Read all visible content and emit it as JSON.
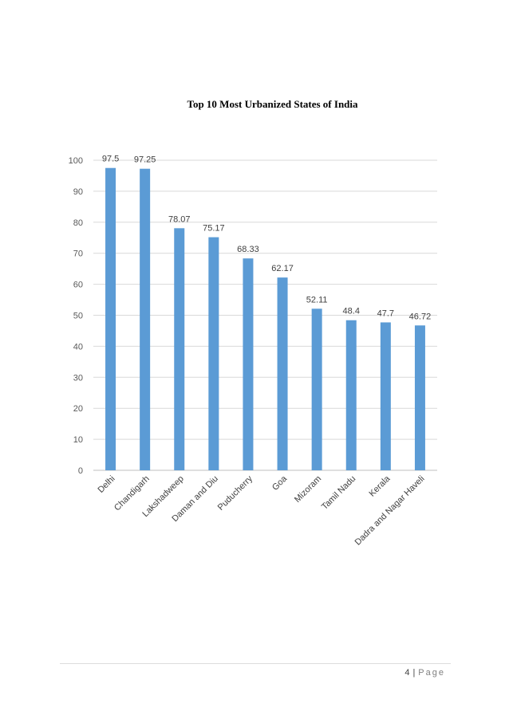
{
  "chart_data": {
    "type": "bar",
    "title": "Top 10 Most Urbanized States of India",
    "categories": [
      "Delhi",
      "Chandigarh",
      "Lakshadweep",
      "Daman and Diu",
      "Puducherry",
      "Goa",
      "Mizoram",
      "Tamil Nadu",
      "Kerala",
      "Dadra and Nagar Haveli"
    ],
    "values": [
      97.5,
      97.25,
      78.07,
      75.17,
      68.33,
      62.17,
      52.11,
      48.4,
      47.7,
      46.72
    ],
    "data_labels": [
      "97.5",
      "97.25",
      "78.07",
      "75.17",
      "68.33",
      "62.17",
      "52.11",
      "48.4",
      "47.7",
      "46.72"
    ],
    "yticks": [
      "0",
      "10",
      "20",
      "30",
      "40",
      "50",
      "60",
      "70",
      "80",
      "90",
      "100"
    ],
    "ylim": [
      0,
      100
    ],
    "grid": true,
    "bar_color": "#5b9bd5",
    "legend": "none"
  },
  "footer": {
    "page_number": "4",
    "separator": "|",
    "page_word": "Page"
  }
}
